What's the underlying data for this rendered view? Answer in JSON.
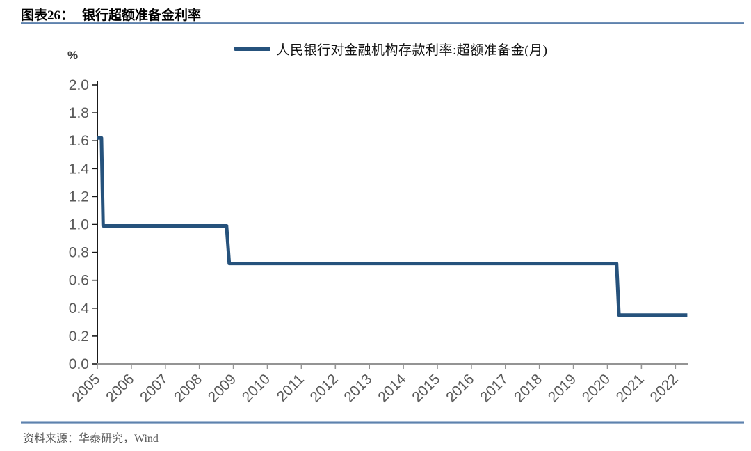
{
  "header": {
    "label": "图表26：",
    "title": "银行超额准备金利率"
  },
  "footer": {
    "source": "资料来源：华泰研究，Wind"
  },
  "colors": {
    "series_line": "#26527C",
    "y_axis": "#1a1a1a",
    "x_axis": "#949494",
    "tick_label": "#595959",
    "separator_blue": "#5e82ad"
  },
  "chart_data": {
    "type": "line",
    "subtype": "step",
    "title": "银行超额准备金利率",
    "ylabel": "%",
    "xlabel": "",
    "grid": false,
    "legend_position": "top-center",
    "ylim": [
      0.0,
      2.0
    ],
    "xlim": [
      2005.0,
      2022.4
    ],
    "y_ticks": [
      2.0,
      1.8,
      1.6,
      1.4,
      1.2,
      1.0,
      0.8,
      0.6,
      0.4,
      0.2,
      0.0
    ],
    "x_ticks": [
      2005,
      2006,
      2007,
      2008,
      2009,
      2010,
      2011,
      2012,
      2013,
      2014,
      2015,
      2016,
      2017,
      2018,
      2019,
      2020,
      2021,
      2022
    ],
    "series": [
      {
        "name": "人民银行对金融机构存款利率:超额准备金(月)",
        "color": "#26527C",
        "points": [
          [
            2005.0,
            1.62
          ],
          [
            2005.12,
            1.62
          ],
          [
            2005.17,
            0.99
          ],
          [
            2008.8,
            0.99
          ],
          [
            2008.88,
            0.72
          ],
          [
            2020.27,
            0.72
          ],
          [
            2020.34,
            0.35
          ],
          [
            2022.35,
            0.35
          ]
        ]
      }
    ],
    "rate_steps_pct": [
      1.62,
      0.99,
      0.72,
      0.35
    ]
  }
}
